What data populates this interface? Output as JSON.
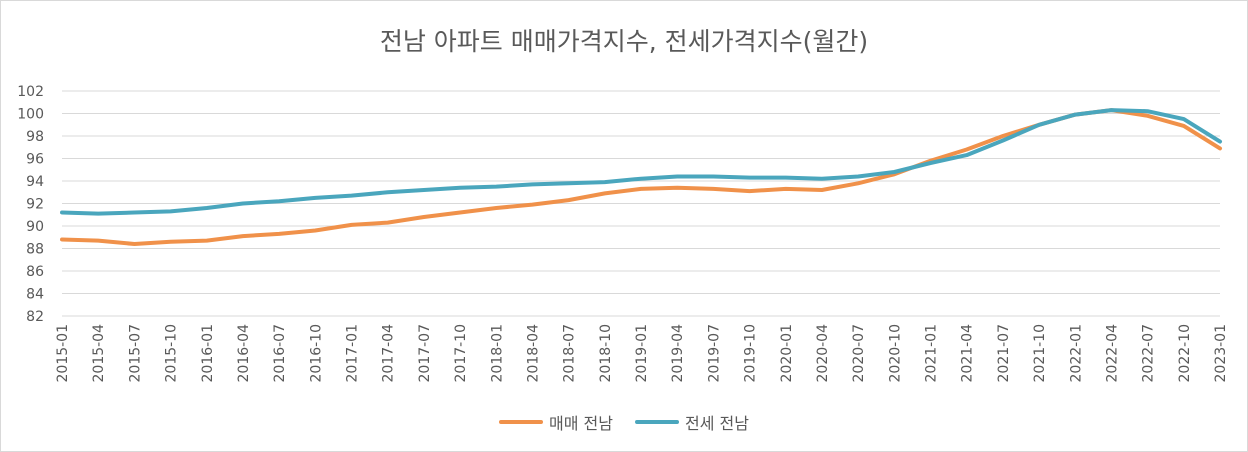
{
  "chart_data": {
    "type": "line",
    "title": "전남 아파트 매매가격지수, 전세가격지수(월간)",
    "ylim": [
      82,
      102
    ],
    "yticks": [
      82,
      84,
      86,
      88,
      90,
      92,
      94,
      96,
      98,
      100,
      102
    ],
    "xtick_labels": [
      "2015-01",
      "2015-04",
      "2015-07",
      "2015-10",
      "2016-01",
      "2016-04",
      "2016-07",
      "2016-10",
      "2017-01",
      "2017-04",
      "2017-07",
      "2017-10",
      "2018-01",
      "2018-04",
      "2018-07",
      "2018-10",
      "2019-01",
      "2019-04",
      "2019-07",
      "2019-10",
      "2020-01",
      "2020-04",
      "2020-07",
      "2020-10",
      "2021-01",
      "2021-04",
      "2021-07",
      "2021-10",
      "2022-01",
      "2022-04",
      "2022-07",
      "2022-10",
      "2023-01"
    ],
    "grid": true,
    "legend_position": "bottom",
    "series": [
      {
        "name": "매매 전남",
        "color": "#f0914a",
        "points": [
          [
            "2015-01",
            88.8
          ],
          [
            "2015-04",
            88.7
          ],
          [
            "2015-07",
            88.4
          ],
          [
            "2015-10",
            88.6
          ],
          [
            "2016-01",
            88.7
          ],
          [
            "2016-04",
            89.1
          ],
          [
            "2016-07",
            89.3
          ],
          [
            "2016-10",
            89.6
          ],
          [
            "2017-01",
            90.1
          ],
          [
            "2017-04",
            90.3
          ],
          [
            "2017-07",
            90.8
          ],
          [
            "2017-10",
            91.2
          ],
          [
            "2018-01",
            91.6
          ],
          [
            "2018-04",
            91.9
          ],
          [
            "2018-07",
            92.3
          ],
          [
            "2018-10",
            92.9
          ],
          [
            "2019-01",
            93.3
          ],
          [
            "2019-04",
            93.4
          ],
          [
            "2019-07",
            93.3
          ],
          [
            "2019-10",
            93.1
          ],
          [
            "2020-01",
            93.3
          ],
          [
            "2020-04",
            93.2
          ],
          [
            "2020-07",
            93.8
          ],
          [
            "2020-10",
            94.6
          ],
          [
            "2021-01",
            95.8
          ],
          [
            "2021-04",
            96.8
          ],
          [
            "2021-07",
            98.0
          ],
          [
            "2021-10",
            99.0
          ],
          [
            "2022-01",
            99.9
          ],
          [
            "2022-04",
            100.3
          ],
          [
            "2022-07",
            99.8
          ],
          [
            "2022-10",
            98.9
          ],
          [
            "2023-01",
            96.9
          ]
        ]
      },
      {
        "name": "전세 전남",
        "color": "#4aa6bd",
        "points": [
          [
            "2015-01",
            91.2
          ],
          [
            "2015-04",
            91.1
          ],
          [
            "2015-07",
            91.2
          ],
          [
            "2015-10",
            91.3
          ],
          [
            "2016-01",
            91.6
          ],
          [
            "2016-04",
            92.0
          ],
          [
            "2016-07",
            92.2
          ],
          [
            "2016-10",
            92.5
          ],
          [
            "2017-01",
            92.7
          ],
          [
            "2017-04",
            93.0
          ],
          [
            "2017-07",
            93.2
          ],
          [
            "2017-10",
            93.4
          ],
          [
            "2018-01",
            93.5
          ],
          [
            "2018-04",
            93.7
          ],
          [
            "2018-07",
            93.8
          ],
          [
            "2018-10",
            93.9
          ],
          [
            "2019-01",
            94.2
          ],
          [
            "2019-04",
            94.4
          ],
          [
            "2019-07",
            94.4
          ],
          [
            "2019-10",
            94.3
          ],
          [
            "2020-01",
            94.3
          ],
          [
            "2020-04",
            94.2
          ],
          [
            "2020-07",
            94.4
          ],
          [
            "2020-10",
            94.8
          ],
          [
            "2021-01",
            95.6
          ],
          [
            "2021-04",
            96.3
          ],
          [
            "2021-07",
            97.6
          ],
          [
            "2021-10",
            99.0
          ],
          [
            "2022-01",
            99.9
          ],
          [
            "2022-04",
            100.3
          ],
          [
            "2022-07",
            100.2
          ],
          [
            "2022-10",
            99.5
          ],
          [
            "2023-01",
            97.5
          ]
        ]
      }
    ]
  }
}
